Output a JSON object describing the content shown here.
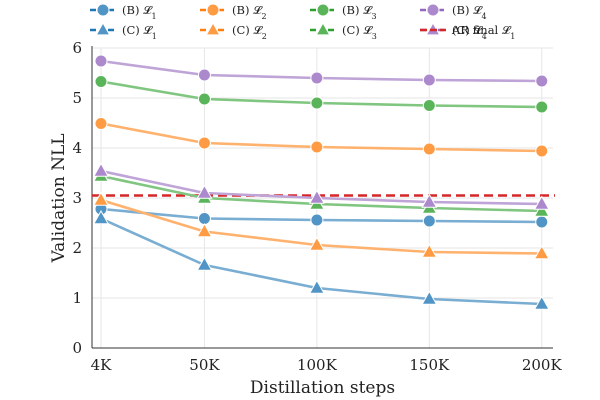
{
  "chart_data": {
    "type": "line",
    "title": "",
    "xlabel": "Distillation steps",
    "ylabel": "Validation NLL",
    "ylim": [
      0,
      6
    ],
    "yticks": [
      0,
      1,
      2,
      3,
      4,
      5,
      6
    ],
    "x": [
      4000,
      50000,
      100000,
      150000,
      200000
    ],
    "x_tick_labels": [
      "4K",
      "50K",
      "100K",
      "150K",
      "200K"
    ],
    "grid": true,
    "legend_placement": "top, above plot",
    "series": [
      {
        "name": "(B) 𝓛1",
        "group": "B",
        "marker": "circle",
        "color": "#1f77b4",
        "values": [
          2.78,
          2.59,
          2.56,
          2.54,
          2.52
        ]
      },
      {
        "name": "(B) 𝓛2",
        "group": "B",
        "marker": "circle",
        "color": "#ff7f0e",
        "values": [
          4.49,
          4.1,
          4.02,
          3.98,
          3.94
        ]
      },
      {
        "name": "(B) 𝓛3",
        "group": "B",
        "marker": "circle",
        "color": "#2ca02c",
        "values": [
          5.33,
          4.98,
          4.9,
          4.85,
          4.82
        ]
      },
      {
        "name": "(B) 𝓛4",
        "group": "B",
        "marker": "circle",
        "color": "#9467bd",
        "values": [
          5.74,
          5.46,
          5.4,
          5.36,
          5.34
        ]
      },
      {
        "name": "(C) 𝓛1",
        "group": "C",
        "marker": "triangle",
        "color": "#1f77b4",
        "values": [
          2.59,
          1.66,
          1.2,
          0.98,
          0.88
        ]
      },
      {
        "name": "(C) 𝓛2",
        "group": "C",
        "marker": "triangle",
        "color": "#ff7f0e",
        "values": [
          2.96,
          2.33,
          2.06,
          1.92,
          1.89
        ]
      },
      {
        "name": "(C) 𝓛3",
        "group": "C",
        "marker": "triangle",
        "color": "#2ca02c",
        "values": [
          3.44,
          3.0,
          2.88,
          2.8,
          2.74
        ]
      },
      {
        "name": "(C) 𝓛4",
        "group": "C",
        "marker": "triangle",
        "color": "#9467bd",
        "values": [
          3.54,
          3.1,
          3.0,
          2.92,
          2.88
        ]
      }
    ],
    "reference_line": {
      "name": "AR final 𝓛1",
      "value": 3.05,
      "color": "#d62728",
      "style": "dashed"
    }
  }
}
